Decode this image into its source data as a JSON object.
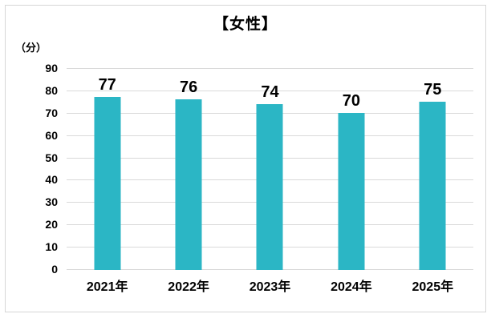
{
  "chart_data": {
    "type": "bar",
    "title": "【女性】",
    "categories": [
      "2021年",
      "2022年",
      "2023年",
      "2024年",
      "2025年"
    ],
    "values": [
      77,
      76,
      74,
      70,
      75
    ],
    "xlabel": "",
    "ylabel": "（分）",
    "ylim": [
      0,
      90
    ],
    "yticks": [
      0,
      10,
      20,
      30,
      40,
      50,
      60,
      70,
      80,
      90
    ],
    "grid": true,
    "legend": "none",
    "data_labels": [
      77,
      76,
      74,
      70,
      75
    ],
    "bar_color": "#2bb6c5",
    "gridline_color": "#d9d9d9",
    "border_color": "#d6d6d6",
    "text_color": "#000000"
  }
}
